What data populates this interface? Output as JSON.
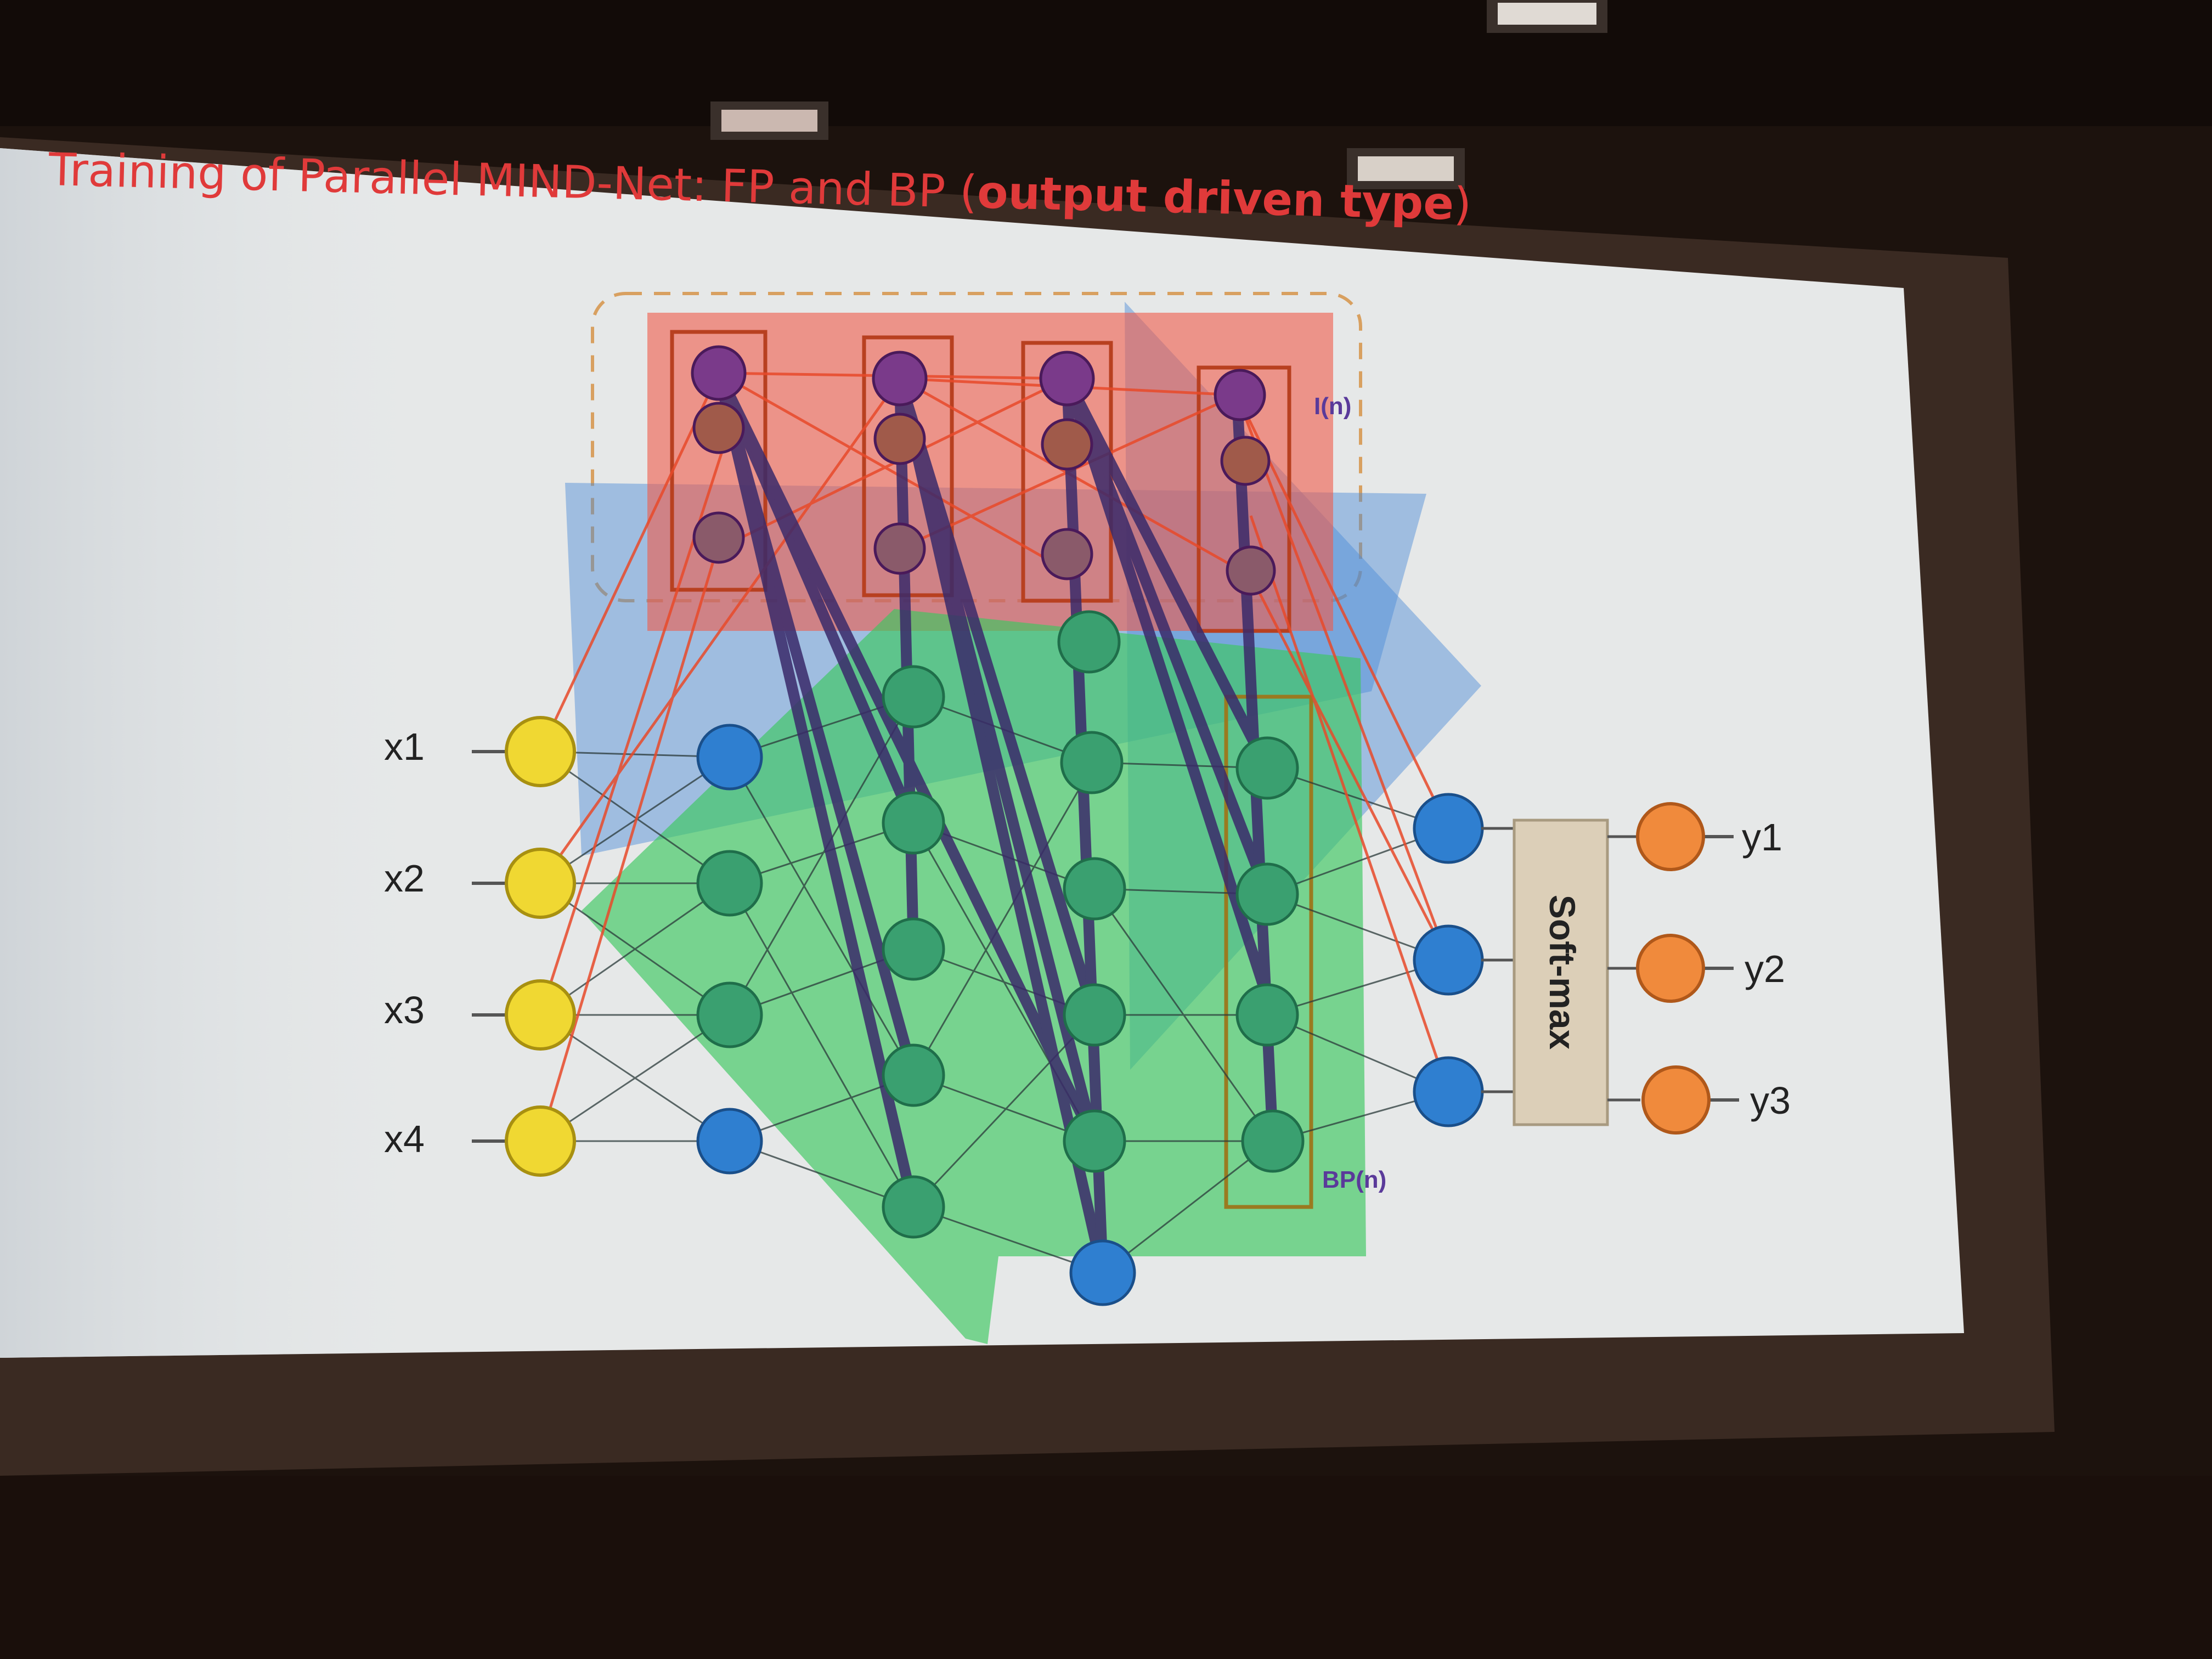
{
  "slide": {
    "title_main": "Training of Parallel MIND-Net: FP and  BP (",
    "title_accent": "output driven type",
    "title_end": ")"
  },
  "inputs": [
    "x1",
    "x2",
    "x3",
    "x4"
  ],
  "outputs": [
    "y1",
    "y2",
    "y3"
  ],
  "labels": {
    "top_block": "I(n)",
    "bottom_block": "BP(n)",
    "softmax": "Soft-max"
  },
  "colors": {
    "input_node": "#f0d832",
    "output_node": "#f08a3c",
    "hidden_node": "#2f7fd0",
    "green_node": "#3aa070",
    "purple_node": "#7a3a8a",
    "red_region": "#f05a4a",
    "green_region": "#3cc860",
    "blue_region": "#4a8ad8",
    "title_red": "#e03a3a"
  }
}
